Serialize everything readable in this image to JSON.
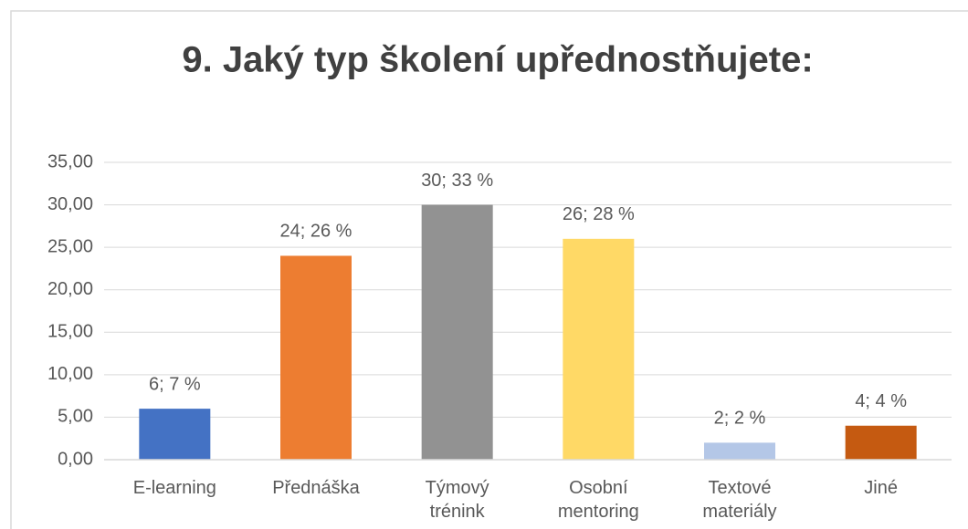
{
  "chart_data": {
    "type": "bar",
    "title": "9. Jaký typ školení upřednostňujete:",
    "categories": [
      "E-learning",
      "Přednáška",
      "Týmový trénink",
      "Osobní mentoring",
      "Textové materiály",
      "Jiné"
    ],
    "values": [
      6,
      24,
      30,
      26,
      2,
      4
    ],
    "value_labels": [
      "6; 7 %",
      "24; 26 %",
      "30; 33 %",
      "26; 28 %",
      "2; 2 %",
      "4; 4 %"
    ],
    "colors": [
      "#4472c4",
      "#ed7d31",
      "#929292",
      "#ffd966",
      "#b4c7e7",
      "#c55a11"
    ],
    "ylim": [
      0,
      35
    ],
    "yticks": [
      {
        "value": 0,
        "label": "0,00"
      },
      {
        "value": 5,
        "label": "5,00"
      },
      {
        "value": 10,
        "label": "10,00"
      },
      {
        "value": 15,
        "label": "15,00"
      },
      {
        "value": 20,
        "label": "20,00"
      },
      {
        "value": 25,
        "label": "25,00"
      },
      {
        "value": 30,
        "label": "30,00"
      },
      {
        "value": 35,
        "label": "35,00"
      }
    ],
    "grid": true
  }
}
